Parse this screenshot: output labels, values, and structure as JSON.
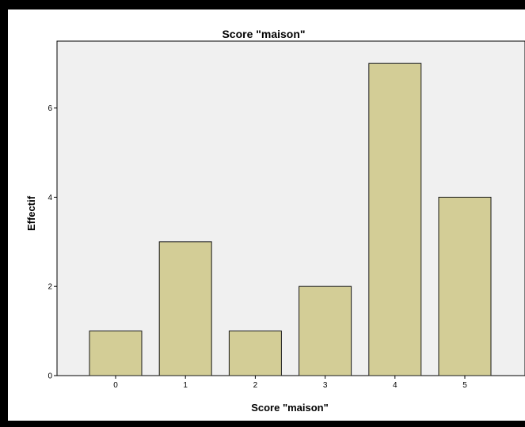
{
  "chart_data": {
    "type": "bar",
    "title": "Score \"maison\"",
    "xlabel": "Score \"maison\"",
    "ylabel": "Effectif",
    "categories": [
      "0",
      "1",
      "2",
      "3",
      "4",
      "5"
    ],
    "values": [
      1,
      3,
      1,
      2,
      7,
      4
    ],
    "ylim": [
      0,
      7.5
    ],
    "yticks": [
      "0",
      "2",
      "4",
      "6"
    ],
    "grid": false,
    "legend": "none",
    "colors": {
      "bar_fill": "#d3cd96",
      "bar_stroke": "#1a1a1a",
      "plot_background": "#f0f0f0",
      "frame_background": "#ffffff"
    }
  }
}
